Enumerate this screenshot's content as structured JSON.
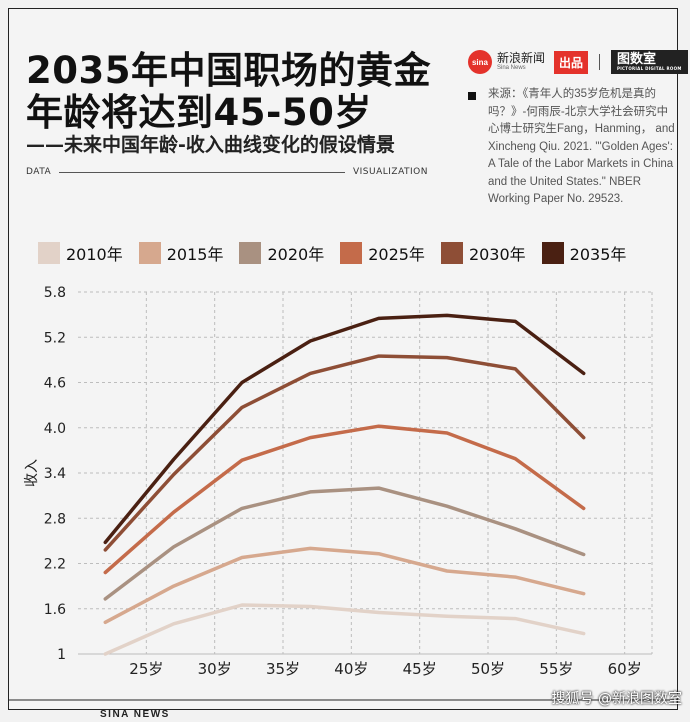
{
  "title_line1": "2035年中国职场的黄金",
  "title_line2": "年龄将达到45-50岁",
  "subtitle": "——未来中国年龄-收入曲线变化的假设情景",
  "data_label": "DATA",
  "visualization_label": "VISUALIZATION",
  "brand": {
    "logo_text": "sina",
    "name": "新浪新闻",
    "name_sub": "Sina News",
    "chupin": "出品",
    "tushi": "图数室",
    "tushi_sub": "PICTORIAL DIGITAL ROOM"
  },
  "source": "来源：《青年人的35岁危机是真的吗？》-何雨辰-北京大学社会研究中心博士研究生Fang，Hanming， and Xincheng Qiu. 2021. \"'Golden Ages': A Tale of the Labor Markets in China and the United States.\" NBER Working Paper No. 29523.",
  "footer": {
    "sina_news": "SINA NEWS",
    "credit": "搜狐号 @新浪图数室"
  },
  "colors": {
    "2010年": "#e2d2c8",
    "2015年": "#d6a88e",
    "2020年": "#a99181",
    "2025年": "#c46b4a",
    "2030年": "#8e4e36",
    "2035年": "#4a2012"
  },
  "chart_data": {
    "type": "line",
    "ylabel": "收入",
    "xlabel": "",
    "ylim": [
      1,
      5.8
    ],
    "xlim": [
      20,
      62
    ],
    "yticks": [
      1,
      1.6,
      2.2,
      2.8,
      3.4,
      4.0,
      4.6,
      5.2,
      5.8
    ],
    "ytick_labels": [
      "1",
      "1.6",
      "2.2",
      "2.8",
      "3.4",
      "4.0",
      "4.6",
      "5.2",
      "5.8"
    ],
    "xticks": [
      25,
      30,
      35,
      40,
      45,
      50,
      55,
      60
    ],
    "xtick_labels": [
      "25岁",
      "30岁",
      "35岁",
      "40岁",
      "45岁",
      "50岁",
      "55岁",
      "60岁"
    ],
    "grid": true,
    "legend_position": "top",
    "x": [
      22,
      27,
      32,
      37,
      42,
      47,
      52,
      57
    ],
    "series": [
      {
        "name": "2010年",
        "values": [
          1.0,
          1.4,
          1.65,
          1.63,
          1.55,
          1.5,
          1.47,
          1.27
        ]
      },
      {
        "name": "2015年",
        "values": [
          1.42,
          1.9,
          2.28,
          2.4,
          2.33,
          2.1,
          2.02,
          1.8
        ]
      },
      {
        "name": "2020年",
        "values": [
          1.73,
          2.42,
          2.93,
          3.15,
          3.2,
          2.96,
          2.66,
          2.32
        ]
      },
      {
        "name": "2025年",
        "values": [
          2.08,
          2.88,
          3.57,
          3.87,
          4.02,
          3.93,
          3.59,
          2.93
        ]
      },
      {
        "name": "2030年",
        "values": [
          2.38,
          3.38,
          4.27,
          4.72,
          4.95,
          4.93,
          4.78,
          3.87
        ]
      },
      {
        "name": "2035年",
        "values": [
          2.48,
          3.58,
          4.6,
          5.15,
          5.45,
          5.49,
          5.41,
          4.72
        ]
      }
    ]
  }
}
